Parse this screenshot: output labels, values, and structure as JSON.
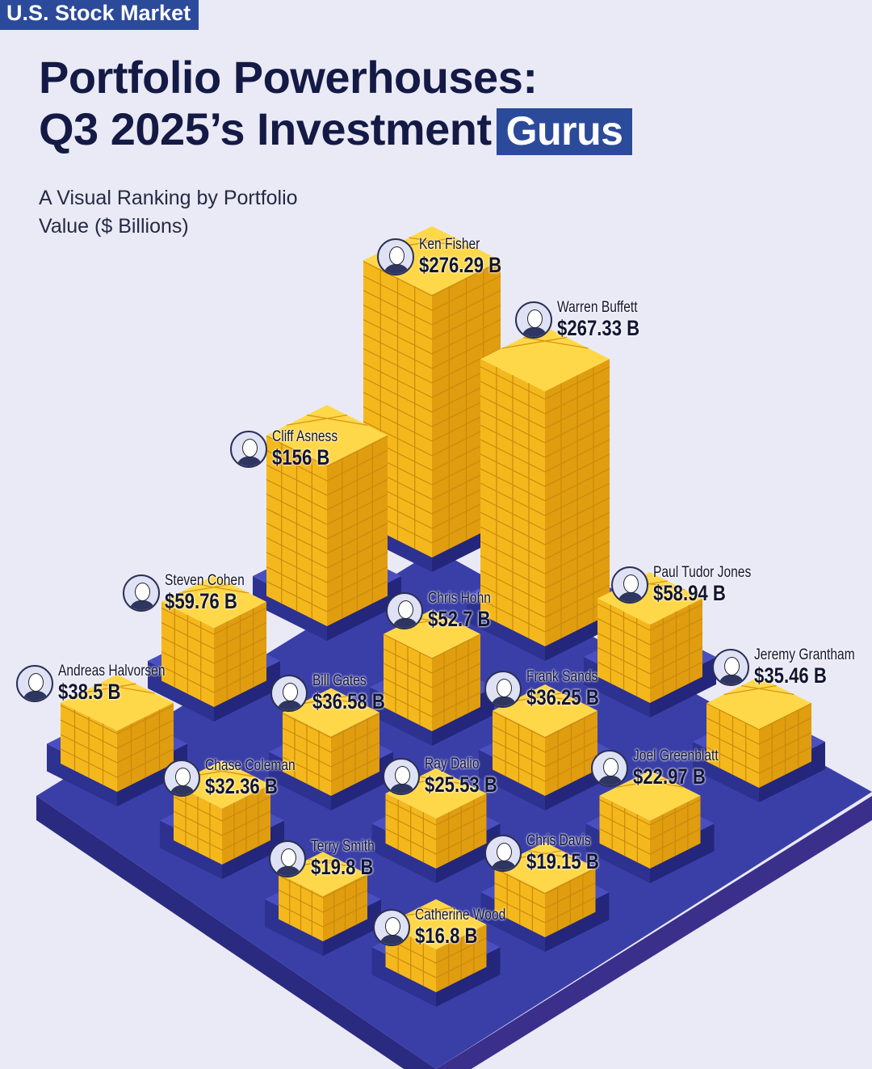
{
  "tag": "U.S. Stock Market",
  "title": {
    "line1": "Portfolio Powerhouses:",
    "line2": "Q3 2025’s Investment",
    "highlight": "Gurus"
  },
  "subtitle": "A Visual Ranking by Portfolio Value ($ Billions)",
  "colors": {
    "gold": "#f5b81c",
    "platform": "#3a3fa8",
    "platform_dark": "#2a2a80",
    "accent": "#2c4a9a",
    "text": "#141a45"
  },
  "chart_data": {
    "type": "bar",
    "style": "isometric 3D gold block stacks on pedestals",
    "unit": "$ Billions",
    "items": [
      {
        "name": "Ken Fisher",
        "value": 276.29,
        "label": "$276.29 B"
      },
      {
        "name": "Warren Buffett",
        "value": 267.33,
        "label": "$267.33 B"
      },
      {
        "name": "Cliff Asness",
        "value": 156,
        "label": "$156 B"
      },
      {
        "name": "Steven Cohen",
        "value": 59.76,
        "label": "$59.76 B"
      },
      {
        "name": "Paul Tudor Jones",
        "value": 58.94,
        "label": "$58.94 B"
      },
      {
        "name": "Chris Hohn",
        "value": 52.7,
        "label": "$52.7 B"
      },
      {
        "name": "Andreas Halvorsen",
        "value": 38.5,
        "label": "$38.5 B"
      },
      {
        "name": "Bill Gates",
        "value": 36.58,
        "label": "$36.58 B"
      },
      {
        "name": "Frank Sands",
        "value": 36.25,
        "label": "$36.25 B"
      },
      {
        "name": "Jeremy Grantham",
        "value": 35.46,
        "label": "$35.46 B"
      },
      {
        "name": "Chase Coleman",
        "value": 32.36,
        "label": "$32.36 B"
      },
      {
        "name": "Ray Dalio",
        "value": 25.53,
        "label": "$25.53 B"
      },
      {
        "name": "Joel Greenblatt",
        "value": 22.97,
        "label": "$22.97 B"
      },
      {
        "name": "Terry Smith",
        "value": 19.8,
        "label": "$19.8 B"
      },
      {
        "name": "Chris Davis",
        "value": 19.15,
        "label": "$19.15 B"
      },
      {
        "name": "Catherine Wood",
        "value": 16.8,
        "label": "$16.8 B"
      }
    ]
  }
}
